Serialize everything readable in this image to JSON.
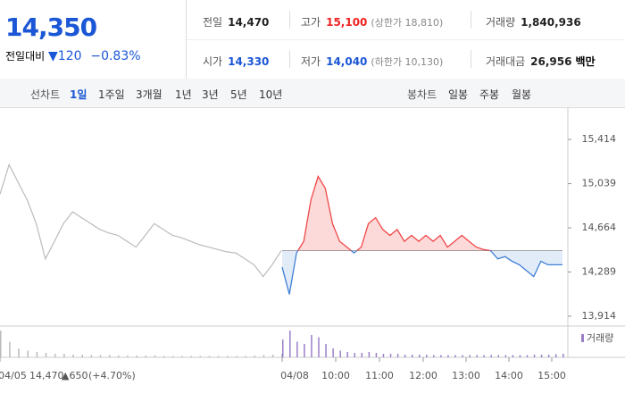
{
  "header": {
    "price": "14,350",
    "change_label": "전일대비",
    "change": "120",
    "change_pct": "−0.83%",
    "stats": [
      [
        {
          "label": "전일",
          "value": "14,470"
        },
        {
          "label": "고가",
          "value": "15,100",
          "note": "(상한가 18,810)"
        },
        {
          "label": "거래량",
          "value": "1,840,936"
        }
      ],
      [
        {
          "label": "시가",
          "value": "14,330"
        },
        {
          "label": "저가",
          "value": "14,040",
          "note": "(하한가 10,130)"
        },
        {
          "label": "거래대금",
          "value": "26,956",
          "unit": "백만"
        }
      ]
    ]
  },
  "tabs": {
    "line_label": "선차트",
    "line": [
      "1일",
      "1주일",
      "3개월",
      "1년",
      "3년",
      "5년",
      "10년"
    ],
    "candle_label": "봉차트",
    "candle": [
      "일봉",
      "주봉",
      "월봉"
    ]
  },
  "chart_data": {
    "type": "line",
    "ylim": [
      13830,
      15650
    ],
    "yticks": [
      {
        "value": 13914,
        "label": "13,914"
      },
      {
        "value": 14289,
        "label": "14,289"
      },
      {
        "value": 14664,
        "label": "14,664"
      },
      {
        "value": 15039,
        "label": "15,039"
      },
      {
        "value": 15414,
        "label": "15,414"
      }
    ],
    "baseline": 14470,
    "series": [
      {
        "color": "#bbbbbb",
        "values": [
          14950,
          15200,
          15050,
          14900,
          14700,
          14400,
          14550,
          14700,
          14800,
          14750,
          14700,
          14650,
          14620,
          14600,
          14550,
          14500,
          14600,
          14700,
          14650,
          14600,
          14580,
          14550,
          14520,
          14500,
          14480,
          14460,
          14450,
          14400,
          14350,
          14250,
          14350,
          14470
        ]
      },
      {
        "color": "#f04848",
        "color_below": "#3d7fd4",
        "values": [
          14330,
          14100,
          14450,
          14550,
          14900,
          15100,
          15000,
          14700,
          14550,
          14500,
          14450,
          14500,
          14700,
          14750,
          14650,
          14600,
          14650,
          14550,
          14600,
          14550,
          14600,
          14550,
          14600,
          14500,
          14550,
          14600,
          14550,
          14500,
          14480,
          14470,
          14400,
          14420,
          14380,
          14350,
          14300,
          14250,
          14380,
          14350,
          14350,
          14350
        ]
      }
    ],
    "volume_name": "거래량",
    "volume_color": "#9a7fc8",
    "volume": [
      [
        60,
        35,
        20,
        15,
        12,
        10,
        8,
        8,
        6,
        6,
        5,
        5,
        5,
        4,
        4,
        4,
        4,
        4,
        3,
        3,
        3,
        3,
        3,
        3,
        3,
        3,
        3,
        3,
        4,
        5,
        6,
        8
      ],
      [
        40,
        60,
        35,
        30,
        50,
        45,
        30,
        20,
        15,
        12,
        10,
        10,
        12,
        10,
        8,
        8,
        8,
        6,
        6,
        6,
        6,
        5,
        5,
        5,
        5,
        5,
        5,
        5,
        5,
        5,
        5,
        5,
        5,
        5,
        5,
        6,
        6,
        6,
        7,
        8
      ]
    ],
    "x_labels": [
      "04/05",
      "04/08",
      "10:00",
      "11:00",
      "12:00",
      "13:00",
      "14:00",
      "15:00"
    ],
    "prev_close": "14,470",
    "prev_change": "▲650",
    "prev_pct": "(+4.70%)"
  }
}
